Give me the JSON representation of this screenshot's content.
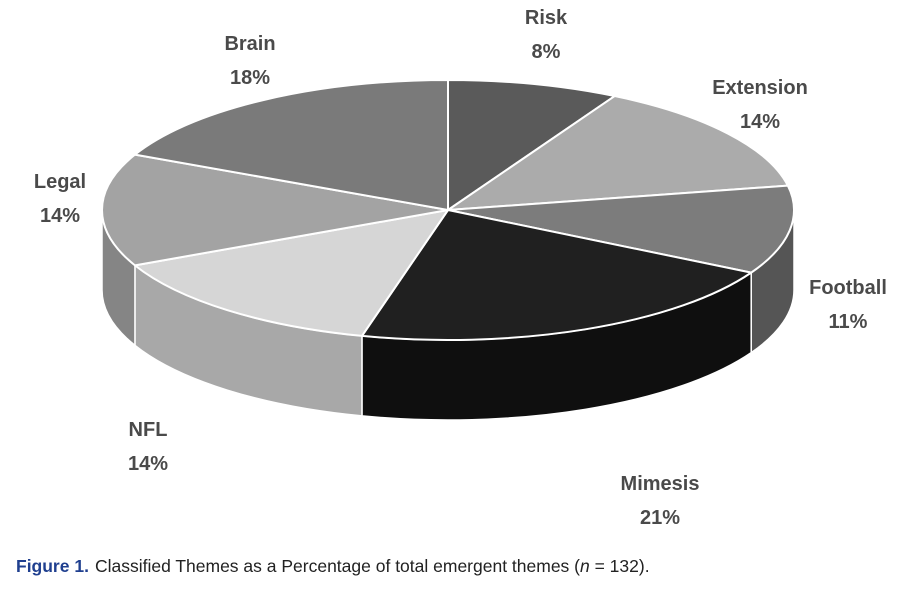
{
  "chart_data": {
    "type": "pie",
    "style": "3d",
    "categories": [
      "Risk",
      "Extension",
      "Football",
      "Mimesis",
      "NFL",
      "Legal",
      "Brain"
    ],
    "values": [
      8,
      14,
      11,
      21,
      14,
      14,
      18
    ],
    "value_labels": [
      "8%",
      "14%",
      "11%",
      "21%",
      "14%",
      "14%",
      "18%"
    ],
    "colors": [
      "#5a5a5a",
      "#ababab",
      "#7c7c7c",
      "#202020",
      "#d6d6d6",
      "#a3a3a3",
      "#7a7a7a"
    ],
    "side_colors": [
      "#3c3c3c",
      "#8e8e8e",
      "#555555",
      "#0f0f0f",
      "#a8a8a8",
      "#858585",
      "#5c5c5c"
    ],
    "label_color": "#4a4a4a",
    "legend": "none",
    "start": "12 o'clock",
    "direction": "clockwise"
  },
  "caption": {
    "label": "Figure 1.",
    "text_before": "Classified Themes as a Percentage of total emergent themes (",
    "n_var": "n",
    "text_after": " = 132).",
    "label_color": "#1f3f8f"
  }
}
